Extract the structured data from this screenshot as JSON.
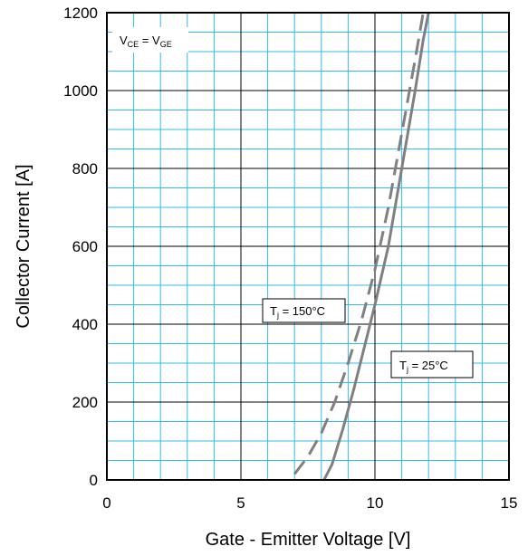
{
  "chart_data": {
    "type": "line",
    "title": "",
    "xlabel": "Gate - Emitter Voltage [V]",
    "ylabel": "Collector Current [A]",
    "xlim": [
      0,
      15
    ],
    "ylim": [
      0,
      1200
    ],
    "xticks": [
      0,
      5,
      10,
      15
    ],
    "yticks": [
      0,
      200,
      400,
      600,
      800,
      1000,
      1200
    ],
    "minor_grid": {
      "x_step": 1,
      "y_step": 50,
      "color": "#33bbee"
    },
    "major_grid": {
      "color": "#000000"
    },
    "series": [
      {
        "style": "solid",
        "color": "#808080",
        "x": [
          8.1,
          8.4,
          8.8,
          9.2,
          9.6,
          10.0,
          10.5,
          11.0,
          11.5,
          11.8,
          12.0
        ],
        "y": [
          0,
          40,
          130,
          230,
          340,
          450,
          600,
          800,
          1000,
          1130,
          1200
        ]
      },
      {
        "style": "dashed",
        "color": "#808080",
        "x": [
          7.0,
          7.5,
          8.0,
          8.5,
          9.0,
          9.5,
          10.0,
          10.5,
          11.0,
          11.5,
          11.8
        ],
        "y": [
          15,
          60,
          120,
          200,
          300,
          410,
          540,
          700,
          890,
          1080,
          1200
        ]
      }
    ],
    "annotations": [
      {
        "label_main": "V",
        "label_sub": "CE",
        "label_mid": " = V",
        "label_sub2": "GE"
      },
      {
        "label_main": "T",
        "label_sub": "j",
        "label_tail": " = 150°C"
      },
      {
        "label_main": "T",
        "label_sub": "j",
        "label_tail": " = 25°C"
      }
    ]
  }
}
